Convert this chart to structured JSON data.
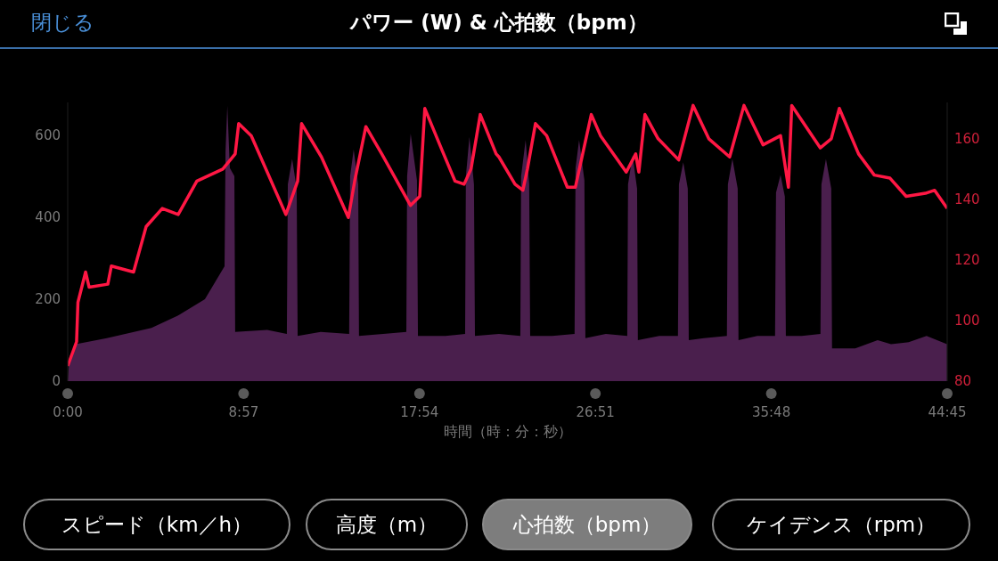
{
  "chart_data": {
    "type": "area",
    "title": "パワー (W) & 心拍数（bpm）",
    "xlabel": "時間（時：分：秒）",
    "annotations": [
      "閉じる",
      "スピード（km／h）",
      "高度（m）",
      "心拍数（bpm）",
      "ケイデンス（rpm）"
    ],
    "xlim": [
      0,
      44.75
    ],
    "xticks": [
      {
        "value": 0,
        "label": "0:00"
      },
      {
        "value": 8.95,
        "label": "8:57"
      },
      {
        "value": 17.9,
        "label": "17:54"
      },
      {
        "value": 26.85,
        "label": "26:51"
      },
      {
        "value": 35.8,
        "label": "35:48"
      },
      {
        "value": 44.75,
        "label": "44:45"
      }
    ],
    "ylim": [
      0,
      680
    ],
    "yticks": [
      0,
      200,
      400,
      600
    ],
    "y2lim": [
      80,
      172
    ],
    "y2ticks": [
      80,
      100,
      120,
      140,
      160
    ],
    "grid": false,
    "legend": false,
    "series": [
      {
        "color": "#4a1f4d",
        "x": [
          0,
          0.09,
          0.41,
          1.99,
          4.26,
          5.62,
          6.98,
          7.98,
          8.03,
          8.12,
          8.25,
          8.48,
          8.52,
          10.15,
          11.15,
          11.2,
          11.42,
          11.65,
          11.7,
          12.87,
          14.32,
          14.37,
          14.55,
          14.78,
          14.82,
          16.05,
          17.23,
          17.27,
          17.45,
          17.77,
          17.82,
          19.22,
          20.22,
          20.26,
          20.44,
          20.67,
          20.72,
          21.94,
          23.03,
          23.07,
          23.3,
          23.48,
          23.53,
          24.66,
          25.79,
          25.84,
          26.02,
          26.29,
          26.34,
          27.38,
          28.47,
          28.51,
          28.74,
          28.97,
          29.01,
          30.1,
          31.05,
          31.1,
          31.32,
          31.55,
          31.6,
          32.37,
          33.54,
          33.59,
          33.82,
          34.09,
          34.13,
          35.09,
          35.99,
          36.04,
          36.27,
          36.49,
          36.54,
          37.35,
          38.3,
          38.35,
          38.58,
          38.85,
          38.89,
          40.07,
          41.21,
          41.89,
          42.79,
          43.7,
          44.74
        ],
        "values": [
          0,
          60,
          90,
          105,
          130,
          160,
          200,
          280,
          560,
          672,
          520,
          500,
          120,
          125,
          115,
          480,
          542,
          470,
          110,
          120,
          115,
          500,
          565,
          480,
          110,
          115,
          120,
          500,
          604,
          490,
          110,
          110,
          115,
          500,
          596,
          480,
          110,
          115,
          110,
          500,
          588,
          480,
          110,
          110,
          115,
          520,
          588,
          490,
          105,
          115,
          110,
          480,
          550,
          470,
          100,
          110,
          110,
          480,
          534,
          470,
          100,
          105,
          110,
          480,
          542,
          470,
          100,
          110,
          110,
          460,
          503,
          450,
          110,
          110,
          115,
          480,
          542,
          470,
          80,
          80,
          100,
          90,
          95,
          110,
          90
        ]
      },
      {
        "type": "line",
        "axis": "y2",
        "color": "#ff1744",
        "x": [
          0,
          0.45,
          0.52,
          0.91,
          1.09,
          2.04,
          2.22,
          3.35,
          3.99,
          4.81,
          5.62,
          6.57,
          7.89,
          8.52,
          8.7,
          9.34,
          11.1,
          11.7,
          11.9,
          12.91,
          14.28,
          14.6,
          15.17,
          15.98,
          17.44,
          17.91,
          18.17,
          19.06,
          19.71,
          20.17,
          20.52,
          20.99,
          21.8,
          21.94,
          22.76,
          23.16,
          23.39,
          23.8,
          24.37,
          25.42,
          25.83,
          26.64,
          27.11,
          28.42,
          28.9,
          29.06,
          29.37,
          30.04,
          31.09,
          31.82,
          32.62,
          33.68,
          34.41,
          35.38,
          36.27,
          36.67,
          36.84,
          38.29,
          38.85,
          39.26,
          40.24,
          41.04,
          41.84,
          42.66,
          43.64,
          44.11,
          44.75
        ],
        "values": [
          85,
          93,
          106,
          116,
          111,
          112,
          118,
          116,
          131,
          137,
          135,
          146,
          150,
          155,
          165,
          161,
          135,
          146,
          165,
          154,
          134,
          146,
          164,
          155,
          138,
          141,
          170,
          156,
          146,
          145,
          150,
          168,
          155,
          154,
          145,
          143,
          150,
          165,
          161,
          144,
          144,
          168,
          161,
          149,
          155,
          149,
          168,
          160,
          153,
          171,
          160,
          154,
          171,
          158,
          161,
          144,
          171,
          157,
          160,
          170,
          155,
          148,
          147,
          141,
          142,
          143,
          137
        ]
      }
    ]
  }
}
